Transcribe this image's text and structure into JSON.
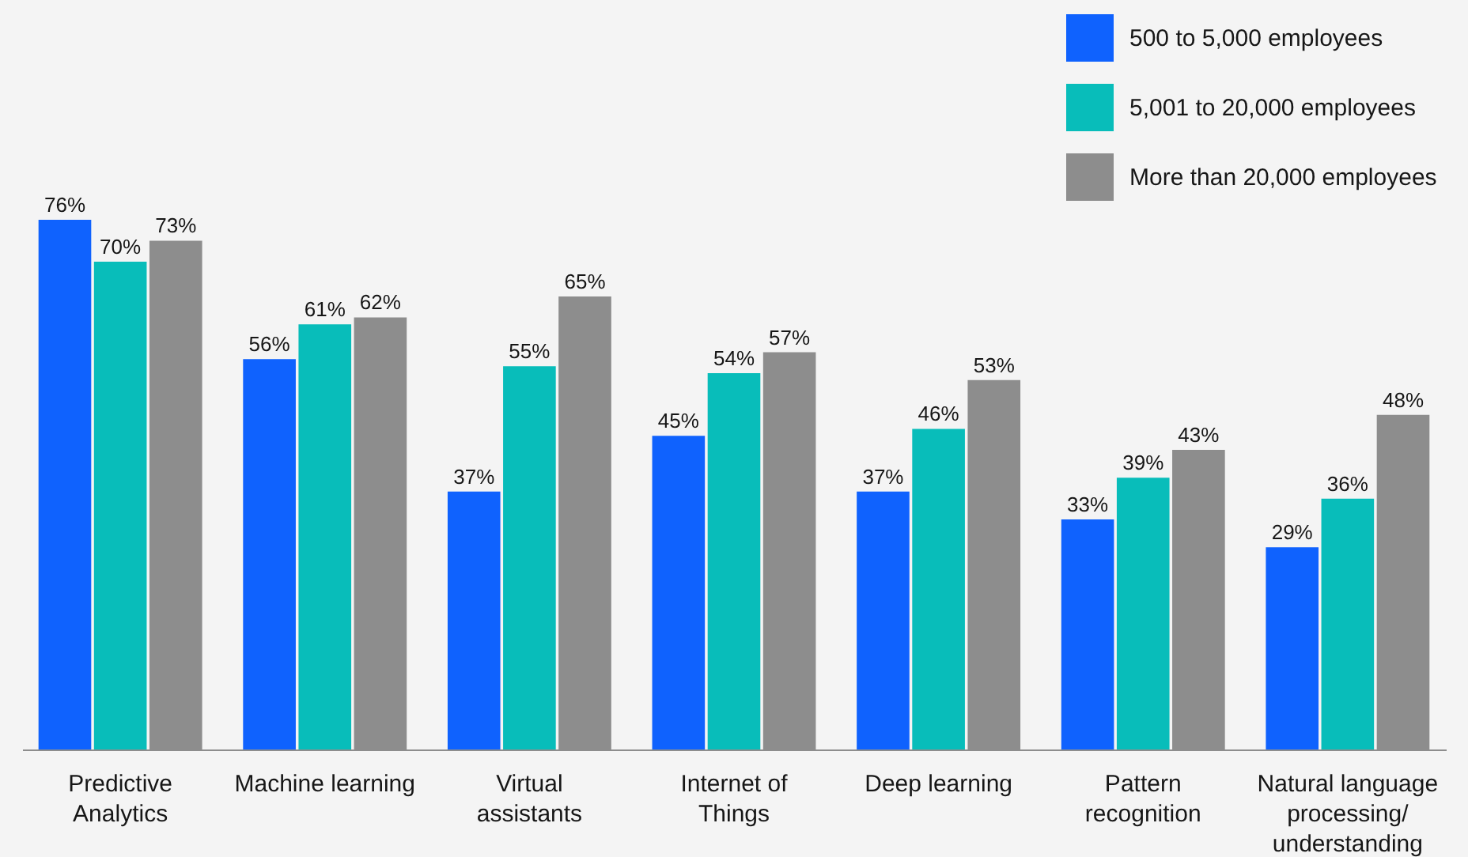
{
  "chart_data": {
    "type": "bar",
    "categories": [
      "Predictive Analytics",
      "Machine learning",
      "Virtual assistants",
      "Internet of Things",
      "Deep learning",
      "Pattern recognition",
      "Natural language processing/ understanding"
    ],
    "series": [
      {
        "name": "500 to 5,000 employees",
        "color": "#0f62fe",
        "values": [
          76,
          56,
          37,
          45,
          37,
          33,
          29
        ],
        "value_labels": [
          "76%",
          "56%",
          "37%",
          "45%",
          "37%",
          "33%",
          "29%"
        ]
      },
      {
        "name": "5,001 to 20,000 employees",
        "color": "#08bdba",
        "values": [
          70,
          61,
          55,
          54,
          46,
          39,
          36
        ],
        "value_labels": [
          "70%",
          "61%",
          "55%",
          "54%",
          "46%",
          "39%",
          "36%"
        ]
      },
      {
        "name": "More than 20,000 employees",
        "color": "#8d8d8d",
        "values": [
          73,
          62,
          65,
          57,
          53,
          43,
          48
        ],
        "value_labels": [
          "73%",
          "62%",
          "65%",
          "57%",
          "53%",
          "43%",
          "48%"
        ]
      }
    ],
    "legend": "top right",
    "grid": false
  }
}
